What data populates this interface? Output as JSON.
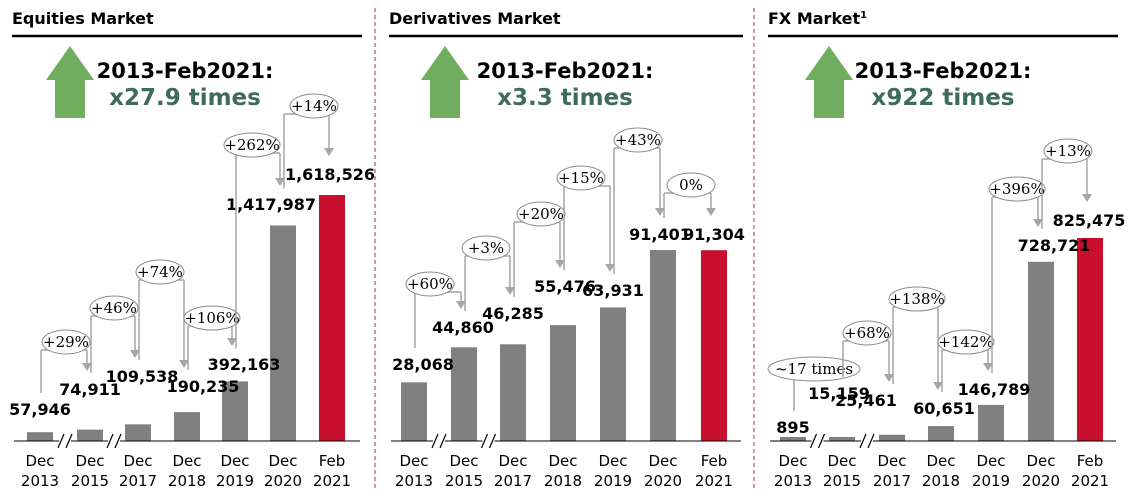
{
  "chart_data": [
    {
      "type": "bar",
      "title": "Equities Market",
      "title_sup": "",
      "headline": "2013-Feb2021:",
      "multiple": "x27.9 times",
      "categories": [
        [
          "Dec",
          "2013"
        ],
        [
          "Dec",
          "2015"
        ],
        [
          "Dec",
          "2017"
        ],
        [
          "Dec",
          "2018"
        ],
        [
          "Dec",
          "2019"
        ],
        [
          "Dec",
          "2020"
        ],
        [
          "Feb",
          "2021"
        ]
      ],
      "values": [
        57946,
        74911,
        109538,
        190235,
        392163,
        1417987,
        1618526
      ],
      "value_labels": [
        "57,946",
        "74,911",
        "109,538",
        "190,235",
        "392,163",
        "1,417,987",
        "1,618,526"
      ],
      "highlight_index": 6,
      "axis_breaks": [
        "2013-2015",
        "2015-2017"
      ],
      "growth": [
        {
          "from": 0,
          "to": 1,
          "label": "+29%"
        },
        {
          "from": 1,
          "to": 2,
          "label": "+46%"
        },
        {
          "from": 2,
          "to": 3,
          "label": "+74%"
        },
        {
          "from": 3,
          "to": 4,
          "label": "+106%"
        },
        {
          "from": 4,
          "to": 5,
          "label": "+262%"
        },
        {
          "from": 5,
          "to": 6,
          "label": "+14%"
        }
      ],
      "ylim": [
        0,
        1700000
      ]
    },
    {
      "type": "bar",
      "title": "Derivatives Market",
      "title_sup": "",
      "headline": "2013-Feb2021:",
      "multiple": "x3.3 times",
      "categories": [
        [
          "Dec",
          "2013"
        ],
        [
          "Dec",
          "2015"
        ],
        [
          "Dec",
          "2017"
        ],
        [
          "Dec",
          "2018"
        ],
        [
          "Dec",
          "2019"
        ],
        [
          "Dec",
          "2020"
        ],
        [
          "Feb",
          "2021"
        ]
      ],
      "values": [
        28068,
        44860,
        46285,
        55476,
        63931,
        91401,
        91304
      ],
      "value_labels": [
        "28,068",
        "44,860",
        "46,285",
        "55,476",
        "63,931",
        "91,401",
        "91,304"
      ],
      "highlight_index": 6,
      "axis_breaks": [
        "2013-2015",
        "2015-2017"
      ],
      "growth": [
        {
          "from": 0,
          "to": 1,
          "label": "+60%"
        },
        {
          "from": 1,
          "to": 2,
          "label": "+3%"
        },
        {
          "from": 2,
          "to": 3,
          "label": "+20%"
        },
        {
          "from": 3,
          "to": 4,
          "label": "+15%"
        },
        {
          "from": 4,
          "to": 5,
          "label": "+43%"
        },
        {
          "from": 5,
          "to": 6,
          "label": "0%"
        }
      ],
      "ylim": [
        0,
        100000
      ]
    },
    {
      "type": "bar",
      "title": "FX Market",
      "title_sup": "1",
      "headline": "2013-Feb2021:",
      "multiple": "x922 times",
      "categories": [
        [
          "Dec",
          "2013"
        ],
        [
          "Dec",
          "2015"
        ],
        [
          "Dec",
          "2017"
        ],
        [
          "Dec",
          "2018"
        ],
        [
          "Dec",
          "2019"
        ],
        [
          "Dec",
          "2020"
        ],
        [
          "Feb",
          "2021"
        ]
      ],
      "values": [
        895,
        15159,
        25461,
        60651,
        146789,
        728721,
        825475
      ],
      "value_labels": [
        "895",
        "15,159",
        "25,461",
        "60,651",
        "146,789",
        "728,721",
        "825,475"
      ],
      "highlight_index": 6,
      "axis_breaks": [
        "2013-2015",
        "2015-2017"
      ],
      "growth": [
        {
          "from": 0,
          "to": 1,
          "label": "~17 times"
        },
        {
          "from": 1,
          "to": 2,
          "label": "+68%"
        },
        {
          "from": 2,
          "to": 3,
          "label": "+138%"
        },
        {
          "from": 3,
          "to": 4,
          "label": "+142%"
        },
        {
          "from": 4,
          "to": 5,
          "label": "+396%"
        },
        {
          "from": 5,
          "to": 6,
          "label": "+13%"
        }
      ],
      "ylim": [
        0,
        900000
      ]
    }
  ],
  "colors": {
    "bar": "#808080",
    "highlight": "#c8102e",
    "arrow_up": "#70ad5f",
    "multiple_text": "#3f6b5c",
    "divider": "#b03030",
    "connector": "#a6a6a6"
  }
}
